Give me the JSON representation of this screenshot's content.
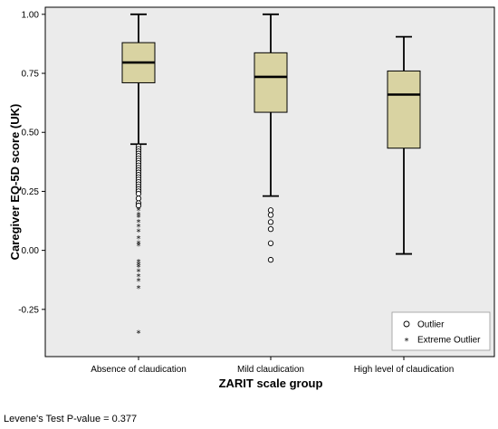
{
  "chart_data": {
    "type": "boxplot",
    "xlabel": "ZARIT scale group",
    "ylabel": "Caregiver EQ-5D score (UK)",
    "ylim": [
      -0.45,
      1.03
    ],
    "yticks": [
      -0.25,
      0.0,
      0.25,
      0.5,
      0.75,
      1.0
    ],
    "ytick_labels": [
      "-0.25",
      "0.00",
      "0.25",
      "0.50",
      "0.75",
      "1.00"
    ],
    "grid": false,
    "legend_position": "bottom-right",
    "legend": [
      {
        "symbol": "circle",
        "label": "Outlier"
      },
      {
        "symbol": "star",
        "label": "Extreme Outlier"
      }
    ],
    "box_color": "#d9d3a2",
    "plot_background": "#ebebeb",
    "groups": [
      {
        "label": "Absence of claudication",
        "whisker_low": 0.45,
        "q1": 0.71,
        "median": 0.796,
        "q3": 0.88,
        "whisker_high": 1.0,
        "outliers": [
          0.44,
          0.43,
          0.42,
          0.41,
          0.4,
          0.39,
          0.38,
          0.37,
          0.36,
          0.35,
          0.34,
          0.33,
          0.32,
          0.31,
          0.3,
          0.29,
          0.28,
          0.27,
          0.26,
          0.25,
          0.24,
          0.22,
          0.2,
          0.19
        ],
        "extreme_outliers": [
          0.17,
          0.15,
          0.14,
          0.12,
          0.1,
          0.08,
          0.05,
          0.03,
          0.02,
          -0.05,
          -0.06,
          -0.07,
          -0.09,
          -0.11,
          -0.13,
          -0.16,
          -0.35
        ]
      },
      {
        "label": "Mild claudication",
        "whisker_low": 0.23,
        "q1": 0.585,
        "median": 0.735,
        "q3": 0.837,
        "whisker_high": 1.0,
        "outliers": [
          0.17,
          0.15,
          0.12,
          0.09,
          0.03,
          -0.04
        ],
        "extreme_outliers": []
      },
      {
        "label": "High level of claudication",
        "whisker_low": -0.015,
        "q1": 0.433,
        "median": 0.66,
        "q3": 0.76,
        "whisker_high": 0.905,
        "outliers": [],
        "extreme_outliers": []
      }
    ]
  },
  "footnote": "Levene's Test P-value = 0.377"
}
